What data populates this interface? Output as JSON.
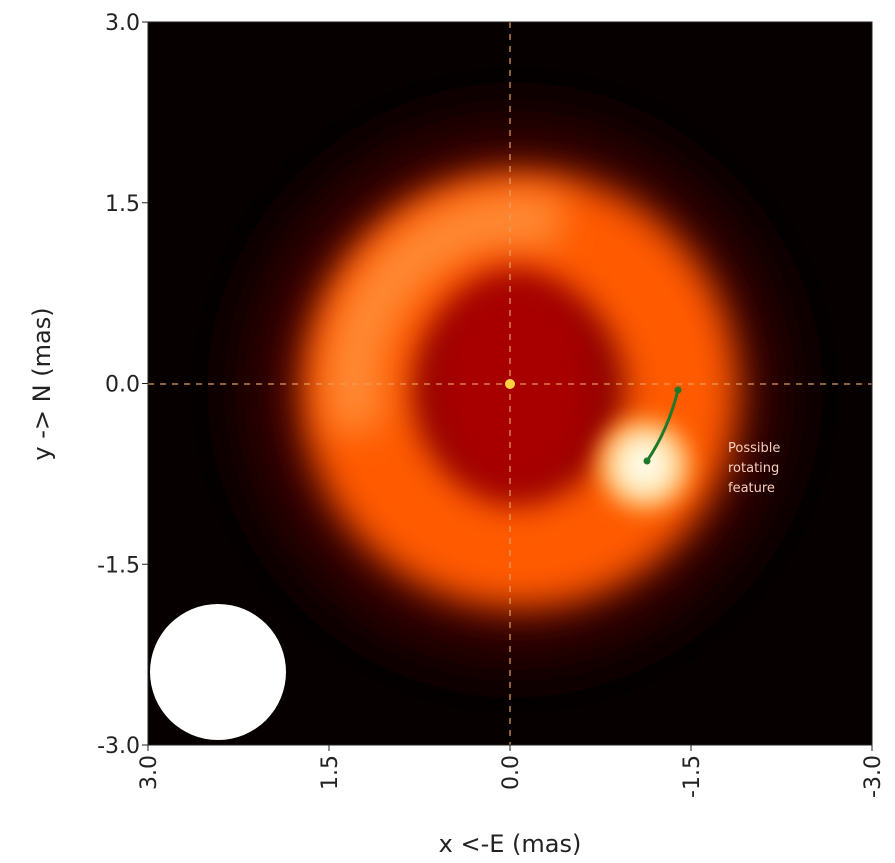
{
  "chart_data": {
    "type": "image",
    "xlabel": "x <-E (mas)",
    "ylabel": "y -> N (mas)",
    "xlim": [
      3,
      -3
    ],
    "ylim": [
      -3,
      3
    ],
    "xticks": [
      {
        "value": 3,
        "label": "3.0"
      },
      {
        "value": 1.5,
        "label": "1.5"
      },
      {
        "value": 0,
        "label": "0.0"
      },
      {
        "value": -1.5,
        "label": "-1.5"
      },
      {
        "value": -3,
        "label": "-3.0"
      }
    ],
    "yticks": [
      {
        "value": -3,
        "label": "-3.0"
      },
      {
        "value": -1.5,
        "label": "-1.5"
      },
      {
        "value": 0,
        "label": "0.0"
      },
      {
        "value": 1.5,
        "label": "1.5"
      },
      {
        "value": 3,
        "label": "3.0"
      }
    ],
    "annotation": [
      "Possible",
      "rotating",
      "feature"
    ]
  }
}
